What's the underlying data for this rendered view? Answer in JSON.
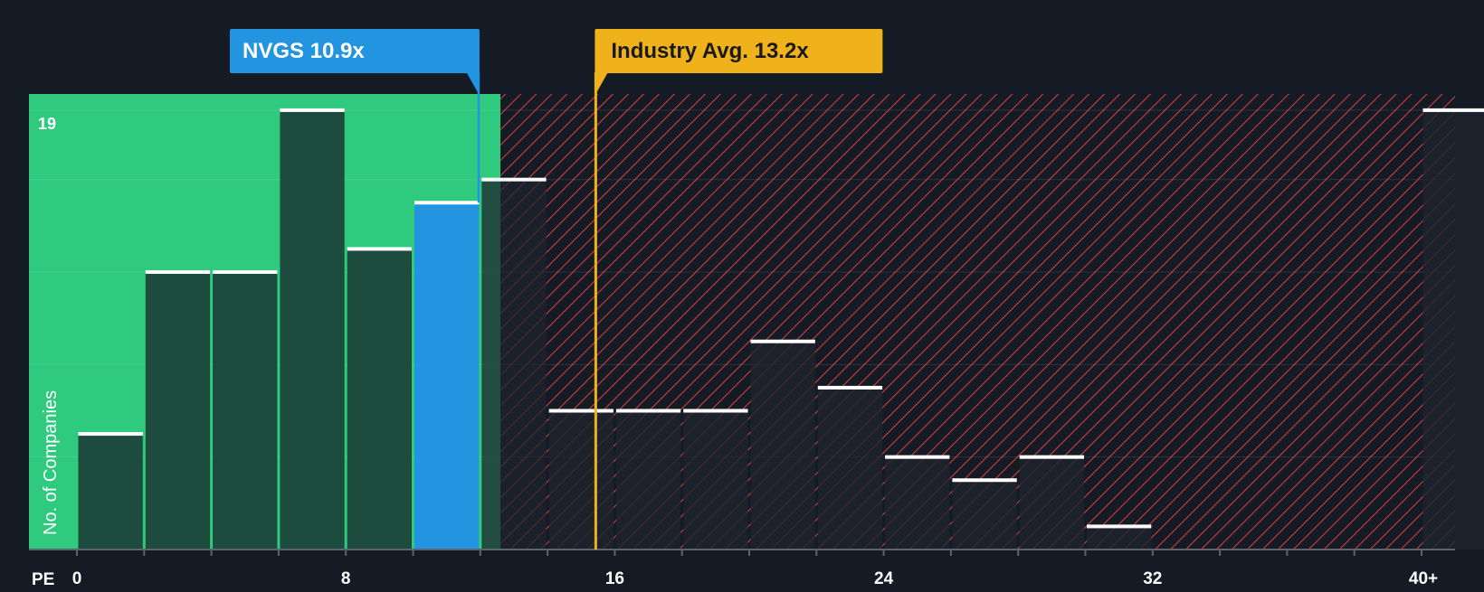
{
  "chart_data": {
    "type": "bar",
    "title": "",
    "xlabel": "PE",
    "ylabel": "No. of Companies",
    "x_tick_labels": [
      "0",
      "8",
      "16",
      "24",
      "32",
      "40+"
    ],
    "x_tick_values": [
      0,
      8,
      16,
      24,
      32,
      40
    ],
    "y_max_label": "19",
    "ylim": [
      0,
      19.7
    ],
    "grid": true,
    "bin_width": 2,
    "bins": [
      {
        "start": 0,
        "value": 5
      },
      {
        "start": 2,
        "value": 12
      },
      {
        "start": 4,
        "value": 12
      },
      {
        "start": 6,
        "value": 19
      },
      {
        "start": 8,
        "value": 13
      },
      {
        "start": 10,
        "value": 15,
        "highlight": true
      },
      {
        "start": 12,
        "value": 16
      },
      {
        "start": 14,
        "value": 6
      },
      {
        "start": 16,
        "value": 6
      },
      {
        "start": 18,
        "value": 6
      },
      {
        "start": 20,
        "value": 9
      },
      {
        "start": 22,
        "value": 7
      },
      {
        "start": 24,
        "value": 4
      },
      {
        "start": 26,
        "value": 3
      },
      {
        "start": 28,
        "value": 4
      },
      {
        "start": 30,
        "value": 1
      },
      {
        "start": 32,
        "value": 0
      },
      {
        "start": 34,
        "value": 0
      },
      {
        "start": 36,
        "value": 0
      },
      {
        "start": 38,
        "value": 0
      },
      {
        "start": 40,
        "value": 19
      }
    ],
    "company": {
      "label": "NVGS 10.9x",
      "pe": 10.9,
      "color": "#2394e0"
    },
    "industry": {
      "label": "Industry Avg. 13.2x",
      "pe": 13.2,
      "color": "#f0b21a"
    },
    "fair_zone_end_pe": 12.6,
    "colors": {
      "background": "#151b24",
      "fair_zone": "#2fca7e",
      "bar_in_zone": "#1d4b3e",
      "bar_out_zone": "#1d242e",
      "hatch": "#d23c3f",
      "bar_cap": "#ffffff",
      "highlight_bar": "#2394e0"
    }
  }
}
